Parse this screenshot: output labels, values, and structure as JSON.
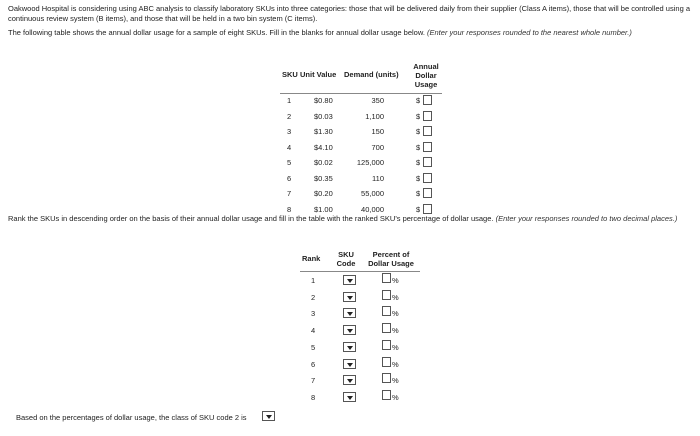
{
  "intro": "Oakwood Hospital is considering using ABC analysis to classify laboratory SKUs into three categories: those that will be delivered daily from their supplier (Class A items), those that will be controlled using a continuous review system (B items), and those that will be held in a two bin system (C items).",
  "instruction1": {
    "text": "The following table shows the annual dollar usage for a sample of eight SKUs. Fill in the blanks for annual dollar usage below.",
    "note": "(Enter your responses rounded to the nearest whole number.)"
  },
  "table1": {
    "headers": [
      "SKU",
      "Unit Value",
      "Demand (units)",
      "Annual Dollar Usage"
    ],
    "currency": "$",
    "rows": [
      [
        "1",
        "$0.80",
        "350"
      ],
      [
        "2",
        "$0.03",
        "1,100"
      ],
      [
        "3",
        "$1.30",
        "150"
      ],
      [
        "4",
        "$4.10",
        "700"
      ],
      [
        "5",
        "$0.02",
        "125,000"
      ],
      [
        "6",
        "$0.35",
        "110"
      ],
      [
        "7",
        "$0.20",
        "55,000"
      ],
      [
        "8",
        "$1.00",
        "40,000"
      ]
    ]
  },
  "instruction2": {
    "text": "Rank the SKUs in descending order on the basis of their annual dollar usage and fill in the table with the ranked SKU's percentage of dollar usage.",
    "note": "(Enter your responses rounded to two decimal places.)"
  },
  "table2": {
    "headers": [
      "Rank",
      "SKU Code",
      "Percent of Dollar Usage"
    ],
    "percent_sign": "%",
    "ranks": [
      "1",
      "2",
      "3",
      "4",
      "5",
      "6",
      "7",
      "8"
    ]
  },
  "final": "Based on the percentages of dollar usage, the class of SKU code 2 is"
}
